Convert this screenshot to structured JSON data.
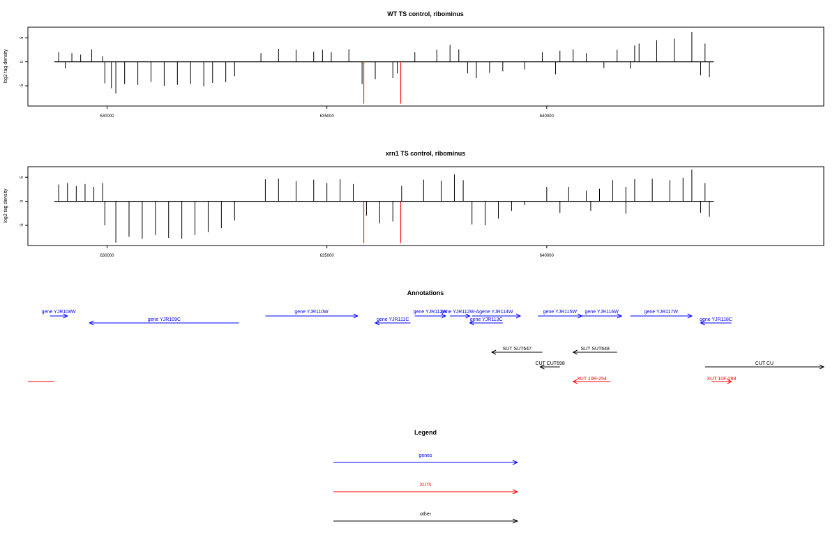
{
  "chart_data": [
    {
      "type": "bar",
      "title": "WT TS control, ribominus",
      "ylabel": "log2 tag density",
      "xlabel": "",
      "xlim": [
        628200,
        646300
      ],
      "ylim": [
        -9.2,
        7.2
      ],
      "x_ticks": [
        630000,
        635000,
        640000
      ],
      "x_tick_labels": [
        "630000",
        "635000",
        "640000"
      ],
      "y_ticks": [
        5,
        0,
        -5
      ],
      "y_tick_labels": [
        "5",
        "0",
        "-5"
      ],
      "grid": false,
      "baseline": {
        "from": 628800,
        "to": 643800
      },
      "series": [
        {
          "values": [
            [
              628900,
              2.0
            ],
            [
              629050,
              -1.4
            ],
            [
              629200,
              1.8
            ],
            [
              629400,
              1.5
            ],
            [
              629650,
              2.6
            ],
            [
              629900,
              1.2
            ],
            [
              629950,
              -4.5
            ],
            [
              630100,
              -5.5
            ],
            [
              630200,
              -6.6
            ],
            [
              630400,
              -4.6
            ],
            [
              630700,
              -4.8
            ],
            [
              631000,
              -4.2
            ],
            [
              631300,
              -5.0
            ],
            [
              631600,
              -4.8
            ],
            [
              631900,
              -4.6
            ],
            [
              632200,
              -5.1
            ],
            [
              632400,
              -4.4
            ],
            [
              632700,
              -4.2
            ],
            [
              632900,
              -3.0
            ],
            [
              633500,
              1.8
            ],
            [
              633900,
              2.7
            ],
            [
              634300,
              2.5
            ],
            [
              634700,
              2.1
            ],
            [
              634900,
              2.5
            ],
            [
              635100,
              2.0
            ],
            [
              635500,
              2.6
            ],
            [
              635800,
              -4.6
            ],
            [
              636100,
              -3.6
            ],
            [
              636500,
              -3.4
            ],
            [
              636600,
              -2.4
            ],
            [
              637000,
              2.0
            ],
            [
              637500,
              2.5
            ],
            [
              637800,
              3.5
            ],
            [
              638000,
              2.6
            ],
            [
              638200,
              -2.4
            ],
            [
              638400,
              -3.4
            ],
            [
              638700,
              -2.3
            ],
            [
              639000,
              -2.0
            ],
            [
              639500,
              -1.6
            ],
            [
              639900,
              2.0
            ],
            [
              640300,
              2.3
            ],
            [
              640600,
              2.6
            ],
            [
              640200,
              -2.6
            ],
            [
              640900,
              1.8
            ],
            [
              641300,
              -1.3
            ],
            [
              641600,
              2.5
            ],
            [
              642000,
              3.4
            ],
            [
              641900,
              -1.4
            ],
            [
              642100,
              3.8
            ],
            [
              642500,
              4.5
            ],
            [
              642900,
              4.8
            ],
            [
              643300,
              6.2
            ],
            [
              643600,
              3.8
            ],
            [
              643500,
              -2.8
            ],
            [
              643700,
              -3.2
            ]
          ]
        },
        {
          "color": "#ff0000",
          "values": [
            [
              635840,
              -8.7
            ],
            [
              636680,
              -8.7
            ]
          ]
        }
      ]
    },
    {
      "type": "bar",
      "title": "xrn1 TS control, ribominus",
      "ylabel": "log2 tag density",
      "xlabel": "",
      "xlim": [
        628200,
        646300
      ],
      "ylim": [
        -9.2,
        7.2
      ],
      "x_ticks": [
        630000,
        635000,
        640000
      ],
      "x_tick_labels": [
        "630000",
        "635000",
        "640000"
      ],
      "y_ticks": [
        5,
        0,
        -5
      ],
      "y_tick_labels": [
        "5",
        "0",
        "-5"
      ],
      "grid": false,
      "baseline": {
        "from": 628800,
        "to": 643800
      },
      "series": [
        {
          "values": [
            [
              628900,
              3.5
            ],
            [
              629100,
              3.8
            ],
            [
              629300,
              3.2
            ],
            [
              629500,
              3.6
            ],
            [
              629700,
              3.0
            ],
            [
              629900,
              3.8
            ],
            [
              629950,
              -5.0
            ],
            [
              630200,
              -8.6
            ],
            [
              630500,
              -7.4
            ],
            [
              630800,
              -7.8
            ],
            [
              631100,
              -7.0
            ],
            [
              631400,
              -7.6
            ],
            [
              631700,
              -7.8
            ],
            [
              632000,
              -7.0
            ],
            [
              632300,
              -6.4
            ],
            [
              632600,
              -5.6
            ],
            [
              632900,
              -4.0
            ],
            [
              633600,
              4.6
            ],
            [
              633900,
              4.7
            ],
            [
              634300,
              4.2
            ],
            [
              634700,
              4.5
            ],
            [
              635000,
              3.8
            ],
            [
              635300,
              4.6
            ],
            [
              635600,
              3.6
            ],
            [
              635900,
              -3.0
            ],
            [
              636200,
              -4.6
            ],
            [
              636500,
              -4.2
            ],
            [
              636700,
              3.2
            ],
            [
              637200,
              4.5
            ],
            [
              637600,
              4.3
            ],
            [
              637900,
              5.6
            ],
            [
              638100,
              4.4
            ],
            [
              638300,
              -4.8
            ],
            [
              638600,
              -5.0
            ],
            [
              638900,
              -3.6
            ],
            [
              639200,
              -2.0
            ],
            [
              639500,
              -0.8
            ],
            [
              640000,
              3.0
            ],
            [
              640500,
              3.0
            ],
            [
              640300,
              -2.4
            ],
            [
              640900,
              2.2
            ],
            [
              641200,
              2.6
            ],
            [
              641500,
              4.4
            ],
            [
              641800,
              3.0
            ],
            [
              641000,
              -2.0
            ],
            [
              641800,
              -2.6
            ],
            [
              642000,
              4.6
            ],
            [
              642400,
              4.7
            ],
            [
              642800,
              4.4
            ],
            [
              643100,
              4.9
            ],
            [
              643300,
              6.6
            ],
            [
              643600,
              3.8
            ],
            [
              643500,
              -2.4
            ],
            [
              643700,
              -3.2
            ]
          ]
        },
        {
          "color": "#ff0000",
          "values": [
            [
              635840,
              -8.7
            ],
            [
              636680,
              -8.7
            ]
          ]
        }
      ]
    }
  ],
  "annotations": {
    "title": "Annotations",
    "features": [
      {
        "label": "gene YJR108W",
        "color": "#0000ff",
        "start": 628700,
        "end": 629100,
        "strand": "+",
        "row": 0
      },
      {
        "label": "gene YJR109C",
        "color": "#0000ff",
        "start": 629600,
        "end": 633000,
        "strand": "-",
        "row": 1
      },
      {
        "label": "gene YJR110W",
        "color": "#0000ff",
        "start": 633600,
        "end": 635700,
        "strand": "+",
        "row": 0
      },
      {
        "label": "gene YJR111C",
        "color": "#0000ff",
        "start": 636100,
        "end": 636900,
        "strand": "-",
        "row": 1
      },
      {
        "label": "gene YJR112W",
        "color": "#0000ff",
        "start": 637000,
        "end": 637700,
        "strand": "+",
        "row": 0
      },
      {
        "label": "gene YJR112W-A",
        "color": "#0000ff",
        "start": 637800,
        "end": 638250,
        "strand": "+",
        "row": 0
      },
      {
        "label": "gene YJR113C",
        "color": "#0000ff",
        "start": 638250,
        "end": 639000,
        "strand": "-",
        "row": 1
      },
      {
        "label": "gene YJR114W",
        "color": "#0000ff",
        "start": 638300,
        "end": 639400,
        "strand": "+",
        "row": 0
      },
      {
        "label": "gene YJR115W",
        "color": "#0000ff",
        "start": 639800,
        "end": 640800,
        "strand": "+",
        "row": 0
      },
      {
        "label": "gene YJR116W",
        "color": "#0000ff",
        "start": 640800,
        "end": 641700,
        "strand": "+",
        "row": 0
      },
      {
        "label": "gene YJR117W",
        "color": "#0000ff",
        "start": 641900,
        "end": 643300,
        "strand": "+",
        "row": 0
      },
      {
        "label": "gene YJR118C",
        "color": "#0000ff",
        "start": 643500,
        "end": 644200,
        "strand": "-",
        "row": 1
      },
      {
        "label": "SUT SUT647",
        "color": "#000000",
        "start": 638750,
        "end": 639900,
        "strand": "-",
        "row": 2
      },
      {
        "label": "SUT SUT648",
        "color": "#000000",
        "start": 640600,
        "end": 641600,
        "strand": "-",
        "row": 2
      },
      {
        "label": "CUT CUT698",
        "color": "#000000",
        "start": 639850,
        "end": 640300,
        "strand": "-",
        "row": 3
      },
      {
        "label": "CUT CU",
        "color": "#000000",
        "start": 643600,
        "end": 646300,
        "strand": "+",
        "row": 3
      },
      {
        "label": "XUT 10R-254",
        "color": "#ff0000",
        "start": 640600,
        "end": 641450,
        "strand": "-",
        "row": 4
      },
      {
        "label": "XUT 10F-293",
        "color": "#ff0000",
        "start": 643750,
        "end": 644200,
        "strand": "+",
        "row": 4
      },
      {
        "label": "",
        "color": "#ff0000",
        "start": 628200,
        "end": 628800,
        "strand": "none",
        "row": 5
      }
    ]
  },
  "legend": {
    "title": "Legend",
    "items": [
      {
        "label": "genes",
        "color": "#0000ff"
      },
      {
        "label": "XUTs",
        "color": "#ff0000"
      },
      {
        "label": "other",
        "color": "#000000"
      }
    ]
  }
}
